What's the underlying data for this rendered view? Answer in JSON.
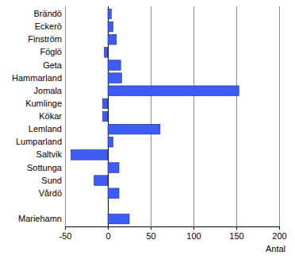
{
  "chart_data": {
    "type": "bar",
    "orientation": "horizontal",
    "categories": [
      "Brändö",
      "Eckerö",
      "Finström",
      "Föglö",
      "Geta",
      "Hammarland",
      "Jomala",
      "Kumlinge",
      "Kökar",
      "Lemland",
      "Lumparland",
      "Saltvik",
      "Sottunga",
      "Sund",
      "Vårdö",
      null,
      "Mariehamn"
    ],
    "values": [
      4,
      6,
      10,
      -4,
      15,
      16,
      153,
      -6,
      -6,
      61,
      6,
      -43,
      13,
      -16,
      13,
      null,
      25
    ],
    "color": "#3d5cf5",
    "x_label": "Antal",
    "xlim": [
      -50,
      200
    ],
    "xticks": [
      -50,
      0,
      50,
      100,
      150,
      200
    ],
    "grid": true
  }
}
